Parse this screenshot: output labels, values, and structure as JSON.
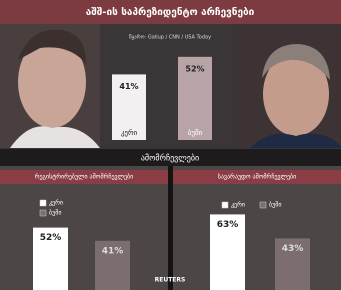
{
  "title": "აშშ-ის საპრეზიდენტო არჩევნები",
  "section_label": "ამომრჩევლები",
  "source_logo": "REUTERS",
  "chart_data": [
    {
      "type": "bar",
      "subtitle": "წყარო: Gallup / CNN / USA Today",
      "categories": [
        "კერი",
        "ბუში"
      ],
      "values": [
        41,
        52
      ],
      "value_labels": [
        "41%",
        "52%"
      ],
      "colors": [
        "#f2f0f0",
        "#b8a4a6"
      ]
    },
    {
      "type": "grouped",
      "title": "რეგისტრირებული ამომრჩევლები",
      "series": [
        {
          "name": "კერი",
          "color": "#ffffff",
          "values": [
            52
          ],
          "value_labels": [
            "52%"
          ]
        },
        {
          "name": "ბუში",
          "color": "#7c6e70",
          "values": [
            41
          ],
          "value_labels": [
            "41%"
          ]
        }
      ]
    },
    {
      "type": "grouped",
      "title": "სავარაუდო ამომრჩევლები",
      "series": [
        {
          "name": "კერი",
          "color": "#ffffff",
          "values": [
            63
          ],
          "value_labels": [
            "63%"
          ]
        },
        {
          "name": "ბუში",
          "color": "#7c6e70",
          "values": [
            43
          ],
          "value_labels": [
            "43%"
          ]
        }
      ]
    }
  ]
}
